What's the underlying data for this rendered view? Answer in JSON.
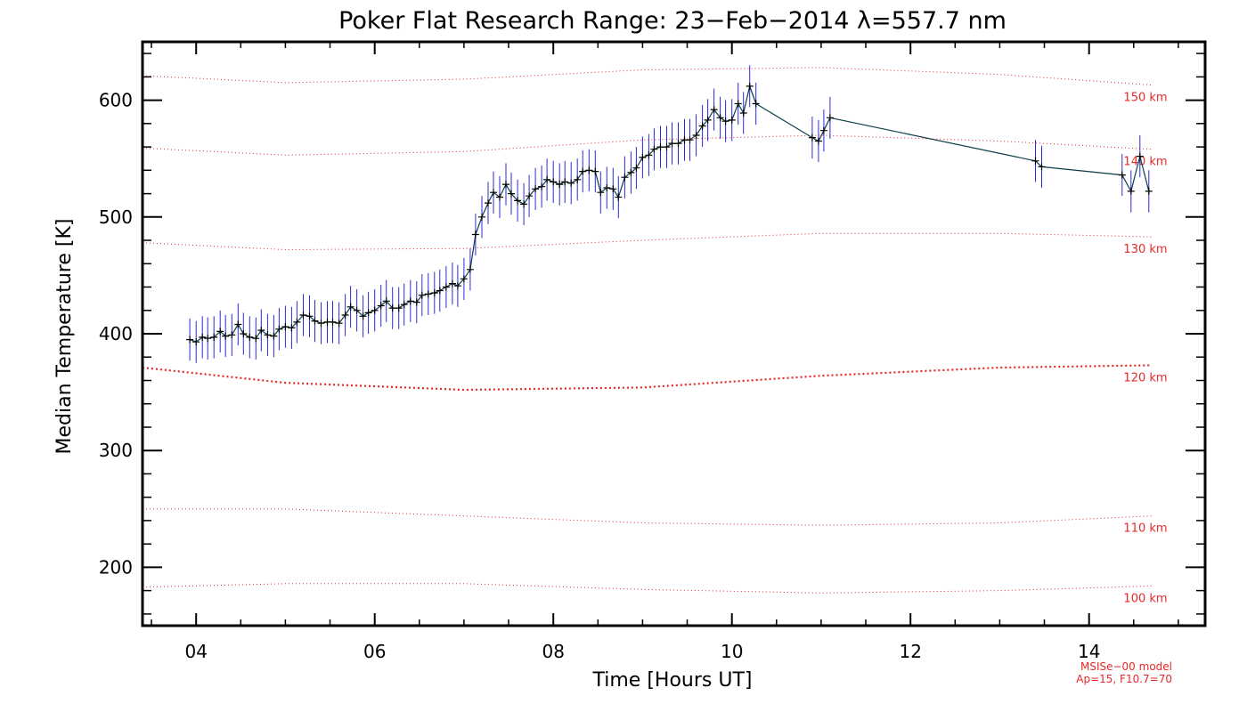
{
  "chart_data": {
    "type": "line",
    "title": "Poker Flat Research Range: 23−Feb−2014 λ=557.7 nm",
    "xlabel": "Time [Hours UT]",
    "ylabel": "Median Temperature [K]",
    "xlim": [
      3.4,
      15.3
    ],
    "ylim": [
      150,
      650
    ],
    "x_ticks": [
      4,
      6,
      8,
      10,
      12,
      14
    ],
    "x_tick_labels": [
      "04",
      "06",
      "08",
      "10",
      "12",
      "14"
    ],
    "y_ticks": [
      200,
      300,
      400,
      500,
      600
    ],
    "y_tick_labels": [
      "200",
      "300",
      "400",
      "500",
      "600"
    ],
    "grid": false,
    "series": [
      {
        "color": "#000000",
        "errorbar_color": "#2a2ad8",
        "line_color": "#0b3d4a",
        "x": [
          3.93,
          4.0,
          4.07,
          4.13,
          4.2,
          4.27,
          4.33,
          4.4,
          4.47,
          4.53,
          4.6,
          4.67,
          4.73,
          4.8,
          4.87,
          4.93,
          5.0,
          5.07,
          5.13,
          5.2,
          5.27,
          5.33,
          5.4,
          5.47,
          5.53,
          5.6,
          5.67,
          5.73,
          5.8,
          5.87,
          5.93,
          6.0,
          6.07,
          6.13,
          6.2,
          6.27,
          6.33,
          6.4,
          6.47,
          6.53,
          6.6,
          6.67,
          6.73,
          6.8,
          6.87,
          6.93,
          7.0,
          7.07,
          7.13,
          7.2,
          7.27,
          7.33,
          7.4,
          7.47,
          7.53,
          7.6,
          7.67,
          7.73,
          7.8,
          7.87,
          7.93,
          8.0,
          8.07,
          8.13,
          8.2,
          8.27,
          8.33,
          8.4,
          8.47,
          8.53,
          8.6,
          8.67,
          8.73,
          8.8,
          8.87,
          8.93,
          9.0,
          9.07,
          9.13,
          9.2,
          9.27,
          9.33,
          9.4,
          9.47,
          9.53,
          9.6,
          9.67,
          9.73,
          9.8,
          9.87,
          9.93,
          10.0,
          10.07,
          10.13,
          10.2,
          10.27,
          10.9,
          10.97,
          11.03,
          11.1,
          13.4,
          13.47,
          14.37,
          14.47,
          14.57,
          14.67
        ],
        "y": [
          395,
          393,
          397,
          396,
          397,
          402,
          398,
          399,
          408,
          400,
          397,
          396,
          403,
          399,
          398,
          404,
          406,
          405,
          410,
          416,
          415,
          411,
          409,
          410,
          410,
          409,
          416,
          423,
          420,
          415,
          418,
          420,
          424,
          428,
          422,
          422,
          425,
          428,
          427,
          433,
          434,
          435,
          437,
          440,
          443,
          441,
          447,
          455,
          485,
          500,
          512,
          521,
          517,
          528,
          520,
          514,
          511,
          518,
          524,
          526,
          532,
          530,
          528,
          530,
          529,
          532,
          539,
          540,
          539,
          521,
          525,
          524,
          517,
          534,
          538,
          542,
          551,
          553,
          558,
          560,
          560,
          563,
          563,
          566,
          566,
          570,
          578,
          583,
          592,
          585,
          582,
          583,
          597,
          589,
          612,
          597,
          568,
          565,
          574,
          585,
          548,
          543,
          536,
          522,
          552,
          522
        ]
      }
    ],
    "model_curves": [
      {
        "label": "100 km",
        "x": [
          3.4,
          5,
          7,
          9,
          11,
          13,
          14.7
        ],
        "y": [
          183,
          186,
          186,
          181,
          178,
          180,
          184
        ]
      },
      {
        "label": "110 km",
        "x": [
          3.4,
          5,
          7,
          9,
          11,
          13,
          14.7
        ],
        "y": [
          250,
          250,
          244,
          238,
          236,
          238,
          244
        ]
      },
      {
        "label": "120 km",
        "x": [
          3.4,
          5,
          7,
          9,
          11,
          13,
          14.7
        ],
        "y": [
          371,
          358,
          352,
          354,
          364,
          371,
          373
        ],
        "emphasis": true
      },
      {
        "label": "130 km",
        "x": [
          3.4,
          5,
          7,
          9,
          11,
          13,
          14.7
        ],
        "y": [
          478,
          472,
          473,
          480,
          486,
          486,
          483
        ]
      },
      {
        "label": "140 km",
        "x": [
          3.4,
          5,
          7,
          9,
          11,
          13,
          14.7
        ],
        "y": [
          559,
          553,
          556,
          566,
          570,
          565,
          558
        ]
      },
      {
        "label": "150 km",
        "x": [
          3.4,
          5,
          7,
          9,
          11,
          13,
          14.7
        ],
        "y": [
          621,
          615,
          618,
          626,
          628,
          622,
          613
        ]
      }
    ],
    "annotations": [
      "MSISe−00 model",
      "Ap=15, F10.7=70"
    ]
  }
}
